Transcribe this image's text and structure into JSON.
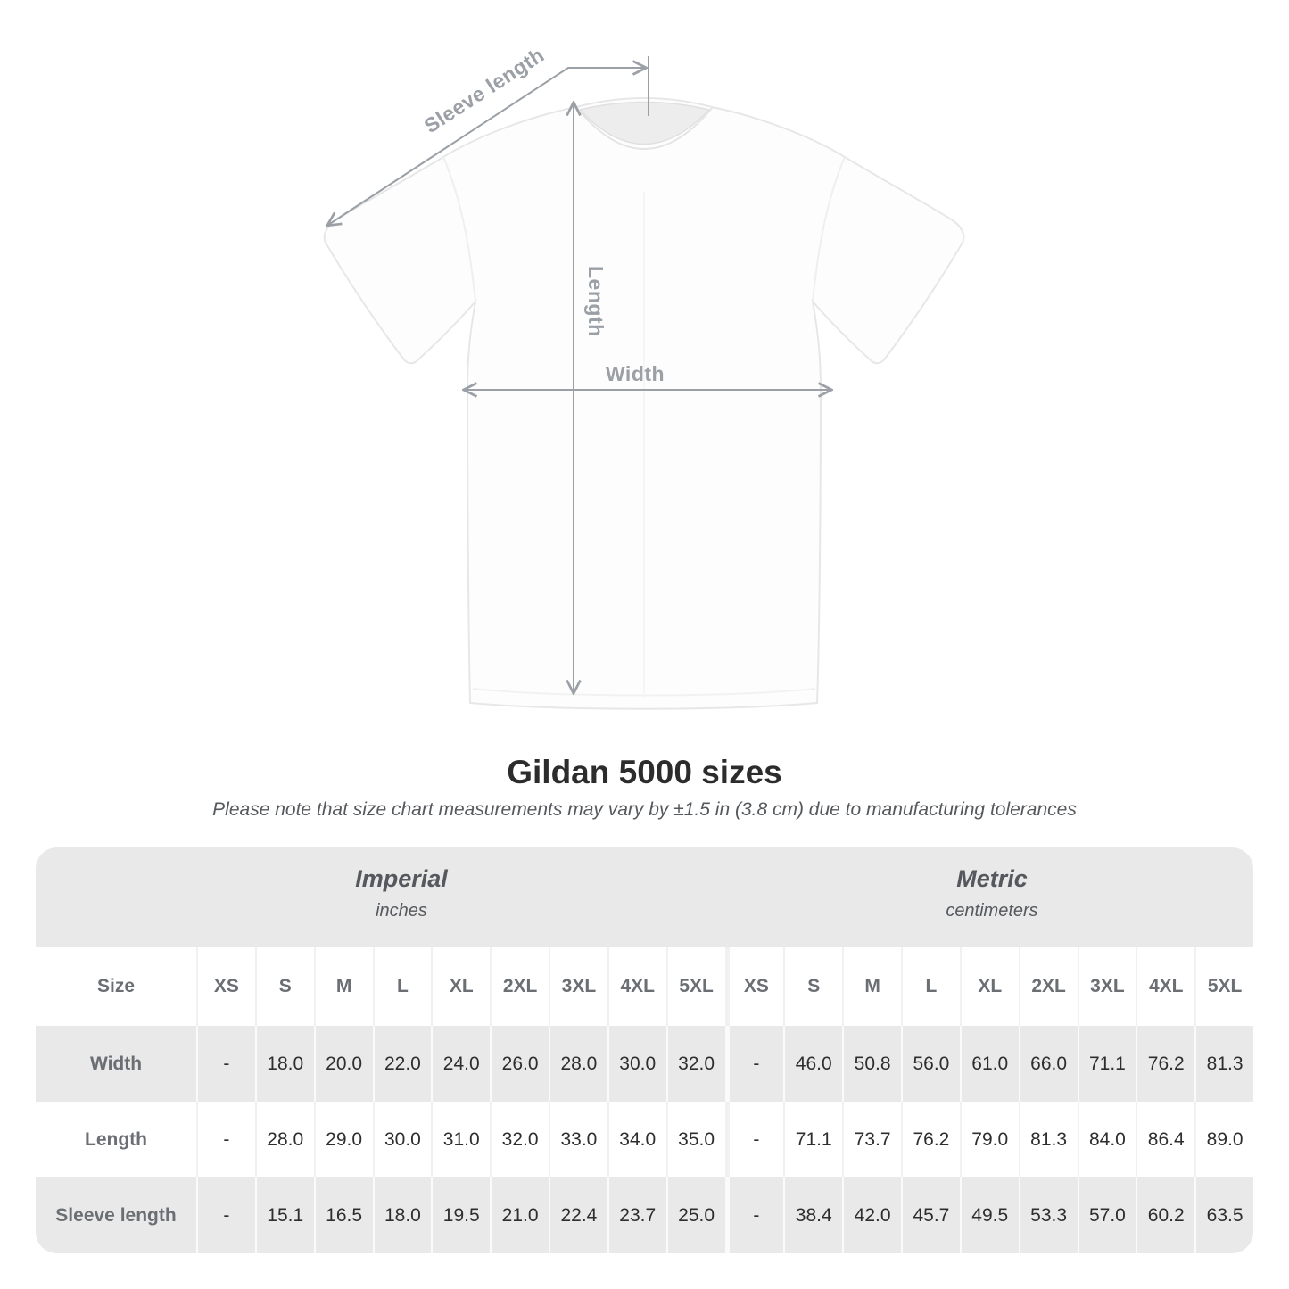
{
  "diagram": {
    "sleeve_length_label": "Sleeve length",
    "length_label": "Length",
    "width_label": "Width"
  },
  "header": {
    "title": "Gildan 5000 sizes",
    "subtitle": "Please note that size chart measurements may vary by ±1.5 in (3.8 cm) due to manufacturing tolerances"
  },
  "table": {
    "size_column_header": "Size",
    "sections": [
      {
        "name": "Imperial",
        "unit": "inches"
      },
      {
        "name": "Metric",
        "unit": "centimeters"
      }
    ]
  },
  "chart_data": {
    "type": "table",
    "title": "Gildan 5000 sizes",
    "note": "Please note that size chart measurements may vary by ±1.5 in (3.8 cm) due to manufacturing tolerances",
    "sections": [
      "Imperial (inches)",
      "Metric (centimeters)"
    ],
    "size_labels": [
      "XS",
      "S",
      "M",
      "L",
      "XL",
      "2XL",
      "3XL",
      "4XL",
      "5XL"
    ],
    "rows": [
      {
        "measurement": "Width",
        "imperial": [
          "-",
          "18.0",
          "20.0",
          "22.0",
          "24.0",
          "26.0",
          "28.0",
          "30.0",
          "32.0"
        ],
        "metric": [
          "-",
          "46.0",
          "50.8",
          "56.0",
          "61.0",
          "66.0",
          "71.1",
          "76.2",
          "81.3"
        ]
      },
      {
        "measurement": "Length",
        "imperial": [
          "-",
          "28.0",
          "29.0",
          "30.0",
          "31.0",
          "32.0",
          "33.0",
          "34.0",
          "35.0"
        ],
        "metric": [
          "-",
          "71.1",
          "73.7",
          "76.2",
          "79.0",
          "81.3",
          "84.0",
          "86.4",
          "89.0"
        ]
      },
      {
        "measurement": "Sleeve length",
        "imperial": [
          "-",
          "15.1",
          "16.5",
          "18.0",
          "19.5",
          "21.0",
          "22.4",
          "23.7",
          "25.0"
        ],
        "metric": [
          "-",
          "38.4",
          "42.0",
          "45.7",
          "49.5",
          "53.3",
          "57.0",
          "60.2",
          "63.5"
        ]
      }
    ]
  },
  "colors": {
    "page_bg": "#ffffff",
    "table_gray": "#e9e9e9",
    "dimension_line": "#9aa0a6",
    "diagram_label": "#9aa0a6",
    "heading_text": "#2c2c2c",
    "subtitle_text": "#55595d",
    "table_label_text": "#6b6f73",
    "table_value_text": "#2e2e2e"
  }
}
